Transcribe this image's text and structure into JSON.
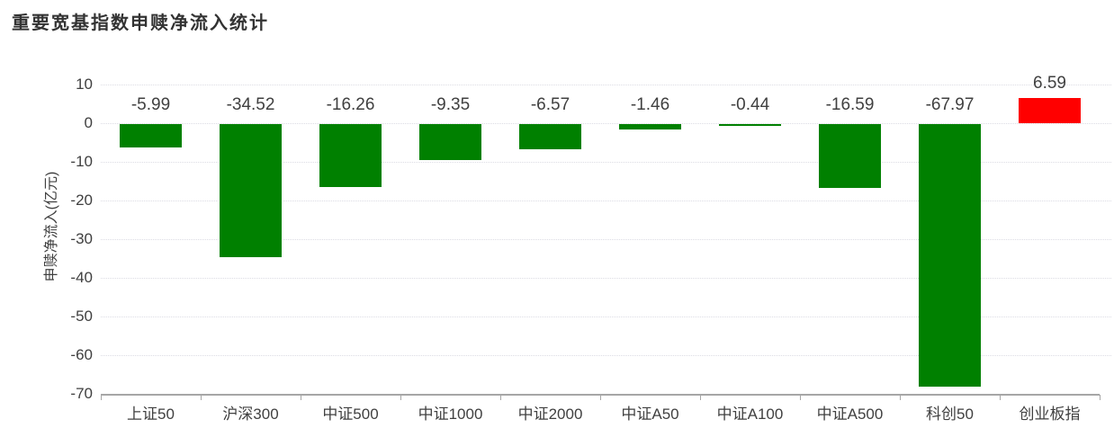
{
  "title": "重要宽基指数申赎净流入统计",
  "chart_data": {
    "type": "bar",
    "title": "重要宽基指数申赎净流入统计",
    "categories": [
      "上证50",
      "沪深300",
      "中证500",
      "中证1000",
      "中证2000",
      "中证A50",
      "中证A100",
      "中证A500",
      "科创50",
      "创业板指"
    ],
    "values": [
      -5.99,
      -34.52,
      -16.26,
      -9.35,
      -6.57,
      -1.46,
      -0.44,
      -16.59,
      -67.97,
      6.59
    ],
    "value_labels": [
      "-5.99",
      "-34.52",
      "-16.26",
      "-9.35",
      "-6.57",
      "-1.46",
      "-0.44",
      "-16.59",
      "-67.97",
      "6.59"
    ],
    "xlabel": "",
    "ylabel": "申赎净流入(亿元)",
    "ylim": [
      -70,
      10
    ],
    "yticks": [
      10,
      0,
      -10,
      -20,
      -30,
      -40,
      -50,
      -60,
      -70
    ],
    "grid": "horizontal-dotted",
    "legend": "none",
    "colors": {
      "negative_bar": "#008000",
      "positive_bar": "#ff0000",
      "gridline": "#dcdce4",
      "axis_line": "#a6a6a6",
      "text": "#404040",
      "title_text": "#333333"
    }
  }
}
